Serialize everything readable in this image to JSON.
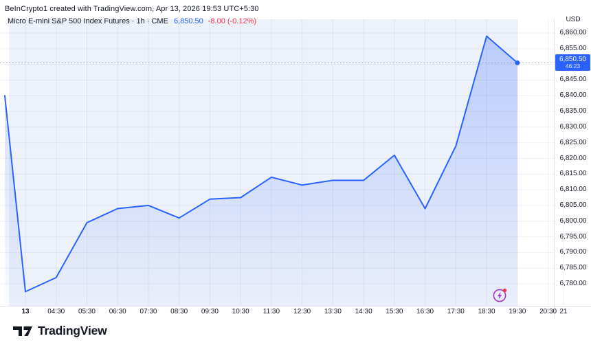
{
  "attribution": "BeInCrypto1 created with TradingView.com, Apr 13, 2026 19:53 UTC+5:30",
  "legend": {
    "symbol_line": "Micro E-mini S&P 500 Index Futures · 1h · CME",
    "last_price": "6,850.50",
    "change": "-8.00 (-0.12%)"
  },
  "price_badge": {
    "price": "6,850.50",
    "countdown": "46:23"
  },
  "price_axis": {
    "currency": "USD",
    "ticks": [
      {
        "label": "6,860.00",
        "value": 6860
      },
      {
        "label": "6,855.00",
        "value": 6855
      },
      {
        "label": "6,845.00",
        "value": 6845
      },
      {
        "label": "6,840.00",
        "value": 6840
      },
      {
        "label": "6,835.00",
        "value": 6835
      },
      {
        "label": "6,830.00",
        "value": 6830
      },
      {
        "label": "6,825.00",
        "value": 6825
      },
      {
        "label": "6,820.00",
        "value": 6820
      },
      {
        "label": "6,815.00",
        "value": 6815
      },
      {
        "label": "6,810.00",
        "value": 6810
      },
      {
        "label": "6,805.00",
        "value": 6805
      },
      {
        "label": "6,800.00",
        "value": 6800
      },
      {
        "label": "6,795.00",
        "value": 6795
      },
      {
        "label": "6,790.00",
        "value": 6790
      },
      {
        "label": "6,785.00",
        "value": 6785
      },
      {
        "label": "6,780.00",
        "value": 6780
      }
    ]
  },
  "time_axis": {
    "ticks": [
      {
        "label": "13",
        "bold": true
      },
      {
        "label": "04:30"
      },
      {
        "label": "05:30"
      },
      {
        "label": "06:30"
      },
      {
        "label": "07:30"
      },
      {
        "label": "08:30"
      },
      {
        "label": "09:30"
      },
      {
        "label": "10:30"
      },
      {
        "label": "11:30"
      },
      {
        "label": "12:30"
      },
      {
        "label": "13:30"
      },
      {
        "label": "14:30"
      },
      {
        "label": "15:30"
      },
      {
        "label": "16:30"
      },
      {
        "label": "17:30"
      },
      {
        "label": "18:30"
      },
      {
        "label": "19:30"
      },
      {
        "label": "20:30"
      },
      {
        "label": "21",
        "half_step": true
      }
    ]
  },
  "logo": {
    "brand": "TradingView"
  },
  "colors": {
    "line": "#2962ff",
    "down_red": "#f23645",
    "session_band": "#edf1fa",
    "badge_bg": "#2962ff",
    "grid": "rgba(70,80,110,0.08)",
    "dotted_price_line": "#9aa0ab",
    "axis_border": "#e0e3eb",
    "events_icon": "#aa30c7",
    "notification_dot": "#f23645",
    "text": "#131722"
  },
  "chart_data": {
    "type": "area",
    "title": "Micro E-mini S&P 500 Index Futures",
    "interval": "1h",
    "exchange": "CME",
    "last_price": 6850.5,
    "change": -8.0,
    "change_pct": -0.12,
    "countdown": "46:23",
    "x_labels": [
      "13",
      "04:30",
      "05:30",
      "06:30",
      "07:30",
      "08:30",
      "09:30",
      "10:30",
      "11:30",
      "12:30",
      "13:30",
      "14:30",
      "15:30",
      "16:30",
      "17:30",
      "18:30",
      "19:30"
    ],
    "values": [
      6777.5,
      6782,
      6799.5,
      6804,
      6805,
      6801,
      6807,
      6807.5,
      6814,
      6811.5,
      6813,
      6813,
      6821,
      6804,
      6824,
      6859,
      6850.5
    ],
    "leading_edge_value": 6840,
    "y_ticks": [
      6780,
      6785,
      6790,
      6795,
      6800,
      6805,
      6810,
      6815,
      6820,
      6825,
      6830,
      6835,
      6840,
      6845,
      6850,
      6855,
      6860
    ],
    "ylim": [
      6773,
      6864
    ],
    "ylabel": "USD",
    "grid": true,
    "legend_position": "top-left",
    "marker_on_last_point": true
  }
}
